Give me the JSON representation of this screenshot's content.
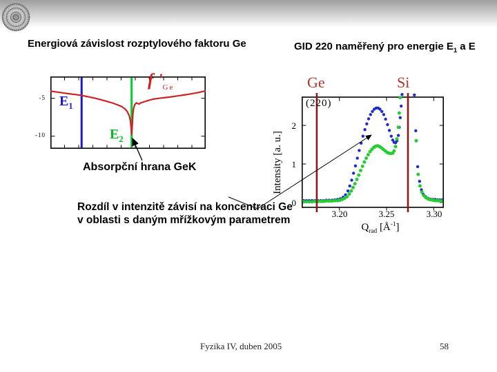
{
  "titles": {
    "left": "Energiová závislost rozptylového faktoru Ge",
    "right_pre": "GID 220 naměřený pro energie E",
    "right_sub": "1",
    "right_post": " a E"
  },
  "annotations": {
    "absorption_edge": "Absorpční hrana GeK",
    "intensity_note_line1": "Rozdíl v intenzitě závisí na koncentraci Ge",
    "intensity_note_line2": "v oblasti s daným mřížkovým parametrem"
  },
  "footer": {
    "left": "Fyzika IV, duben 2005",
    "page": "58"
  },
  "colors": {
    "curve_red": "#cc2222",
    "series_blue": "#1f2bcc",
    "series_green": "#27cc33",
    "maroon_line": "#8b1818",
    "element_label_red": "#a8392b"
  },
  "chart_data": [
    {
      "name": "fprime_vs_energy",
      "type": "line",
      "series_label": {
        "base": "f '",
        "sub": "Ge"
      },
      "ytick_labels": [
        "-5",
        "-10"
      ],
      "yticks": [
        -5,
        -10
      ],
      "ylim": [
        -11.6,
        -2.1
      ],
      "xlim_frac": [
        0,
        1
      ],
      "vlines": [
        {
          "label_base": "E",
          "label_sub": "1",
          "x_frac": 0.201,
          "color": "#1a1acc"
        },
        {
          "label_base": "E",
          "label_sub": "2",
          "x_frac": 0.523,
          "color": "#00cc33"
        }
      ],
      "series": [
        {
          "name": "f_prime_Ge",
          "color": "#cc2222",
          "points": [
            [
              0.0,
              -4.05
            ],
            [
              0.04,
              -4.17
            ],
            [
              0.08,
              -4.28
            ],
            [
              0.12,
              -4.4
            ],
            [
              0.16,
              -4.5
            ],
            [
              0.2,
              -4.62
            ],
            [
              0.24,
              -4.78
            ],
            [
              0.28,
              -4.95
            ],
            [
              0.32,
              -5.15
            ],
            [
              0.36,
              -5.38
            ],
            [
              0.4,
              -5.62
            ],
            [
              0.43,
              -5.85
            ],
            [
              0.46,
              -6.1
            ],
            [
              0.48,
              -6.4
            ],
            [
              0.495,
              -6.75
            ],
            [
              0.507,
              -7.25
            ],
            [
              0.515,
              -7.95
            ],
            [
              0.52,
              -8.9
            ],
            [
              0.5235,
              -9.8
            ],
            [
              0.527,
              -8.6
            ],
            [
              0.531,
              -7.1
            ],
            [
              0.536,
              -6.3
            ],
            [
              0.543,
              -5.85
            ],
            [
              0.553,
              -5.6
            ],
            [
              0.563,
              -5.7
            ],
            [
              0.572,
              -5.75
            ],
            [
              0.582,
              -5.6
            ],
            [
              0.6,
              -5.48
            ],
            [
              0.63,
              -5.28
            ],
            [
              0.66,
              -5.12
            ],
            [
              0.7,
              -5.0
            ],
            [
              0.74,
              -4.9
            ],
            [
              0.78,
              -4.8
            ],
            [
              0.82,
              -4.68
            ],
            [
              0.86,
              -4.56
            ],
            [
              0.9,
              -4.43
            ],
            [
              0.95,
              -4.25
            ],
            [
              1.0,
              -4.02
            ]
          ]
        }
      ]
    },
    {
      "name": "gid_220_rocking_curves",
      "type": "scatter",
      "reflection": "(220)",
      "ylabel": "Intensity [a. u.]",
      "xlabel_parts": {
        "base": "Q",
        "sub": "rad",
        "unit_pre": " [Å",
        "sup": "-1",
        "unit_post": "]"
      },
      "xtick_labels": [
        "3.20",
        "3.25",
        "3.30"
      ],
      "xticks": [
        3.2,
        3.25,
        3.3
      ],
      "ytick_labels": [
        "2",
        "1",
        "0"
      ],
      "yticks": [
        2,
        1,
        0
      ],
      "xlim": [
        3.16,
        3.311
      ],
      "ylim": [
        0,
        2.73
      ],
      "vlines": [
        {
          "label": "Ge",
          "q": 3.176,
          "color": "#8b1818"
        },
        {
          "label": "Si",
          "q": 3.2727,
          "color": "#8b1818"
        }
      ],
      "series": [
        {
          "name": "E1",
          "color": "#1f2bcc",
          "points": [
            [
              3.162,
              0.05
            ],
            [
              3.165,
              0.05
            ],
            [
              3.168,
              0.05
            ],
            [
              3.171,
              0.05
            ],
            [
              3.174,
              0.05
            ],
            [
              3.177,
              0.05
            ],
            [
              3.18,
              0.05
            ],
            [
              3.183,
              0.05
            ],
            [
              3.186,
              0.06
            ],
            [
              3.189,
              0.06
            ],
            [
              3.192,
              0.06
            ],
            [
              3.195,
              0.07
            ],
            [
              3.198,
              0.08
            ],
            [
              3.201,
              0.1
            ],
            [
              3.204,
              0.14
            ],
            [
              3.2065,
              0.2
            ],
            [
              3.209,
              0.3
            ],
            [
              3.211,
              0.43
            ],
            [
              3.213,
              0.58
            ],
            [
              3.215,
              0.76
            ],
            [
              3.217,
              0.95
            ],
            [
              3.219,
              1.15
            ],
            [
              3.221,
              1.35
            ],
            [
              3.223,
              1.54
            ],
            [
              3.225,
              1.72
            ],
            [
              3.227,
              1.89
            ],
            [
              3.229,
              2.04
            ],
            [
              3.231,
              2.17
            ],
            [
              3.233,
              2.28
            ],
            [
              3.235,
              2.36
            ],
            [
              3.237,
              2.42
            ],
            [
              3.239,
              2.45
            ],
            [
              3.241,
              2.45
            ],
            [
              3.243,
              2.42
            ],
            [
              3.245,
              2.36
            ],
            [
              3.247,
              2.28
            ],
            [
              3.249,
              2.16
            ],
            [
              3.251,
              2.02
            ],
            [
              3.253,
              1.87
            ],
            [
              3.255,
              1.72
            ],
            [
              3.2565,
              1.62
            ],
            [
              3.258,
              1.56
            ],
            [
              3.2595,
              1.55
            ],
            [
              3.261,
              1.6
            ],
            [
              3.2625,
              1.74
            ],
            [
              3.2635,
              1.95
            ],
            [
              3.2645,
              2.2
            ],
            [
              3.2655,
              2.5
            ],
            [
              3.2665,
              2.8
            ],
            [
              3.268,
              3.2
            ],
            [
              3.27,
              3.6
            ],
            [
              3.272,
              3.8
            ],
            [
              3.274,
              3.7
            ],
            [
              3.276,
              3.4
            ],
            [
              3.278,
              3.1
            ],
            [
              3.2795,
              2.79
            ],
            [
              3.281,
              1.86
            ],
            [
              3.283,
              0.93
            ],
            [
              3.285,
              0.55
            ],
            [
              3.287,
              0.33
            ],
            [
              3.289,
              0.21
            ],
            [
              3.2915,
              0.15
            ],
            [
              3.294,
              0.11
            ],
            [
              3.2965,
              0.09
            ],
            [
              3.299,
              0.08
            ],
            [
              3.3015,
              0.08
            ],
            [
              3.304,
              0.07
            ],
            [
              3.3065,
              0.07
            ],
            [
              3.309,
              0.07
            ]
          ]
        },
        {
          "name": "E2",
          "color": "#27cc33",
          "points": [
            [
              3.162,
              0.02
            ],
            [
              3.165,
              0.02
            ],
            [
              3.168,
              0.02
            ],
            [
              3.171,
              0.02
            ],
            [
              3.174,
              0.03
            ],
            [
              3.177,
              0.03
            ],
            [
              3.18,
              0.03
            ],
            [
              3.183,
              0.03
            ],
            [
              3.186,
              0.04
            ],
            [
              3.189,
              0.04
            ],
            [
              3.192,
              0.04
            ],
            [
              3.195,
              0.05
            ],
            [
              3.198,
              0.05
            ],
            [
              3.2005,
              0.06
            ],
            [
              3.203,
              0.08
            ],
            [
              3.2055,
              0.11
            ],
            [
              3.208,
              0.15
            ],
            [
              3.2105,
              0.22
            ],
            [
              3.2125,
              0.3
            ],
            [
              3.2145,
              0.39
            ],
            [
              3.2165,
              0.49
            ],
            [
              3.2185,
              0.6
            ],
            [
              3.2205,
              0.71
            ],
            [
              3.2225,
              0.83
            ],
            [
              3.2245,
              0.94
            ],
            [
              3.2265,
              1.05
            ],
            [
              3.2285,
              1.15
            ],
            [
              3.2305,
              1.24
            ],
            [
              3.2325,
              1.32
            ],
            [
              3.2345,
              1.38
            ],
            [
              3.2365,
              1.43
            ],
            [
              3.2385,
              1.46
            ],
            [
              3.2405,
              1.47
            ],
            [
              3.2425,
              1.45
            ],
            [
              3.2445,
              1.42
            ],
            [
              3.2465,
              1.38
            ],
            [
              3.2485,
              1.34
            ],
            [
              3.2505,
              1.3
            ],
            [
              3.2525,
              1.28
            ],
            [
              3.2545,
              1.27
            ],
            [
              3.2565,
              1.28
            ],
            [
              3.258,
              1.34
            ],
            [
              3.2595,
              1.45
            ],
            [
              3.261,
              1.65
            ],
            [
              3.2625,
              1.95
            ],
            [
              3.2635,
              2.32
            ],
            [
              3.2645,
              2.72
            ],
            [
              3.266,
              3.1
            ],
            [
              3.268,
              3.5
            ],
            [
              3.27,
              3.8
            ],
            [
              3.272,
              3.9
            ],
            [
              3.274,
              3.7
            ],
            [
              3.276,
              3.4
            ],
            [
              3.278,
              3.1
            ],
            [
              3.2815,
              1.6
            ],
            [
              3.2835,
              0.73
            ],
            [
              3.2855,
              0.43
            ],
            [
              3.2875,
              0.27
            ],
            [
              3.2895,
              0.18
            ],
            [
              3.2915,
              0.13
            ],
            [
              3.2935,
              0.1
            ],
            [
              3.2955,
              0.08
            ],
            [
              3.2975,
              0.07
            ],
            [
              3.2995,
              0.06
            ],
            [
              3.3015,
              0.05
            ],
            [
              3.3035,
              0.05
            ],
            [
              3.3055,
              0.05
            ],
            [
              3.3075,
              0.04
            ],
            [
              3.3095,
              0.04
            ]
          ]
        }
      ]
    }
  ]
}
